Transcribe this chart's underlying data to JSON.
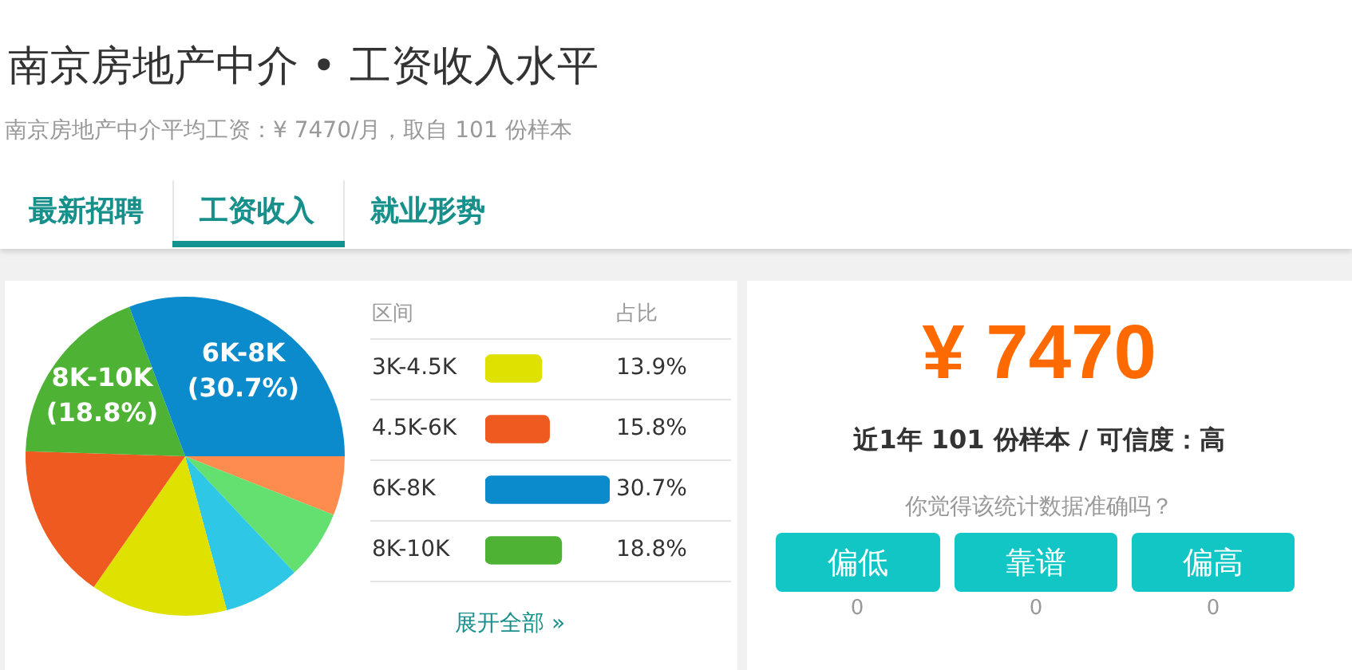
{
  "chart_data": [
    {
      "type": "other",
      "title": "南京房地产中介 • 工资收入水平",
      "subtitle": "南京房地产中介平均工资：¥ 7470/月，取自 101 份样本",
      "annotations": [
        "最新招聘",
        "工资收入",
        "就业形势"
      ]
    },
    {
      "type": "pie",
      "categories": [
        null,
        null,
        null,
        null,
        null,
        "8K-10K",
        "6K-8K"
      ],
      "values": [
        6,
        7,
        7.8,
        13.9,
        15.8,
        18.8,
        30.7
      ],
      "colors": [
        "#fd8c4e",
        "#63e06f",
        "#2ec7e6",
        "#dfe100",
        "#ee5a1f",
        "#4eb335",
        "#0b8bcb"
      ],
      "value_labels": [
        null,
        null,
        null,
        null,
        null,
        "(18.8%)",
        "(30.7%)"
      ]
    },
    {
      "type": "bar",
      "orientation": "horizontal",
      "ylabel": "区间",
      "xlabel": "占比",
      "categories": [
        "3K-4.5K",
        "4.5K-6K",
        "6K-8K",
        "8K-10K"
      ],
      "values": [
        13.9,
        15.8,
        30.7,
        18.8
      ],
      "colors": [
        "#dfe100",
        "#ee5a1f",
        "#0b8bcb",
        "#4eb335"
      ],
      "value_labels": [
        "13.9%",
        "15.8%",
        "30.7%",
        "18.8%"
      ],
      "grid": "y",
      "tick_labels": "y",
      "annotations": [
        "展开全部 »"
      ]
    },
    {
      "type": "other",
      "annotations": [
        "¥ 7470",
        "近1年 101 份样本 / 可信度：高",
        "你觉得该统计数据准确吗？",
        "偏低",
        "靠谱",
        "偏高",
        "0",
        "0",
        "0"
      ]
    }
  ]
}
